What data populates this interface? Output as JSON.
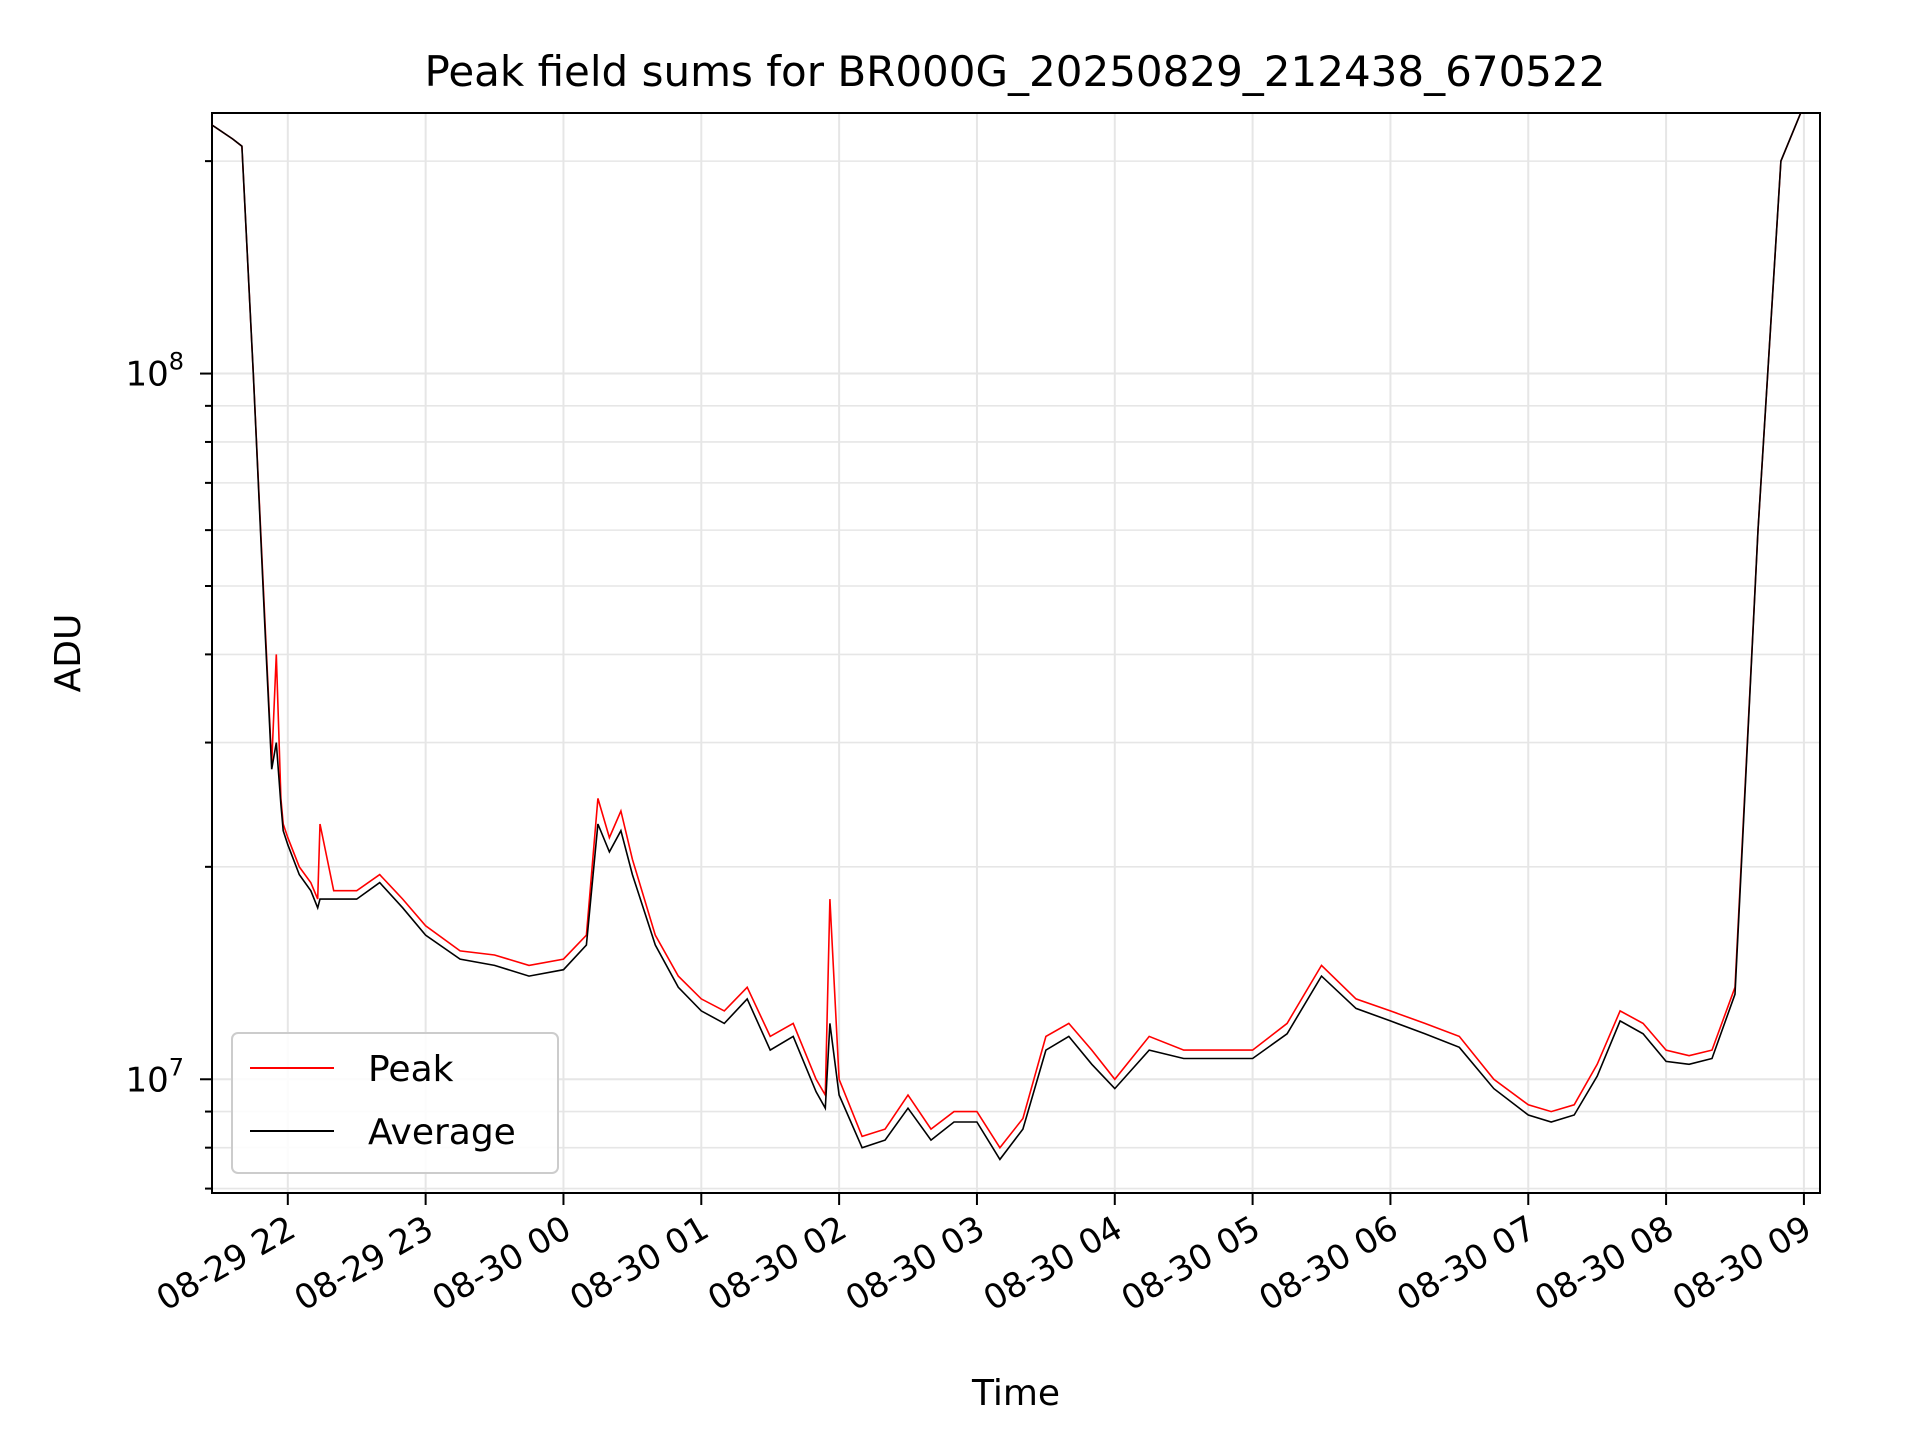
{
  "chart_data": {
    "type": "line",
    "title": "Peak field sums for BR000G_20250829_212438_670522",
    "xlabel": "Time",
    "ylabel": "ADU",
    "y_scale": "log",
    "ylim": [
      6900000,
      234000000
    ],
    "xlim": [
      "2025-08-29 21:27",
      "2025-08-30 09:07"
    ],
    "grid": true,
    "legend_position": "lower-left",
    "x_ticks": [
      {
        "label": "08-29 22",
        "t": "2025-08-29 22:00"
      },
      {
        "label": "08-29 23",
        "t": "2025-08-29 23:00"
      },
      {
        "label": "08-30 00",
        "t": "2025-08-30 00:00"
      },
      {
        "label": "08-30 01",
        "t": "2025-08-30 01:00"
      },
      {
        "label": "08-30 02",
        "t": "2025-08-30 02:00"
      },
      {
        "label": "08-30 03",
        "t": "2025-08-30 03:00"
      },
      {
        "label": "08-30 04",
        "t": "2025-08-30 04:00"
      },
      {
        "label": "08-30 05",
        "t": "2025-08-30 05:00"
      },
      {
        "label": "08-30 06",
        "t": "2025-08-30 06:00"
      },
      {
        "label": "08-30 07",
        "t": "2025-08-30 07:00"
      },
      {
        "label": "08-30 08",
        "t": "2025-08-30 08:00"
      },
      {
        "label": "08-30 09",
        "t": "2025-08-30 09:00"
      }
    ],
    "y_ticks": [
      {
        "base": "10",
        "exp": "7",
        "value": 10000000
      },
      {
        "base": "10",
        "exp": "8",
        "value": 100000000
      }
    ],
    "series": [
      {
        "name": "Peak",
        "color": "#ff0000",
        "x": [
          "2025-08-29 21:27",
          "2025-08-29 21:36",
          "2025-08-29 21:40",
          "2025-08-29 21:45",
          "2025-08-29 21:50",
          "2025-08-29 21:53",
          "2025-08-29 21:55",
          "2025-08-29 21:57",
          "2025-08-29 21:58",
          "2025-08-29 22:00",
          "2025-08-29 22:05",
          "2025-08-29 22:10",
          "2025-08-29 22:13",
          "2025-08-29 22:14",
          "2025-08-29 22:20",
          "2025-08-29 22:30",
          "2025-08-29 22:40",
          "2025-08-29 22:50",
          "2025-08-29 23:00",
          "2025-08-29 23:15",
          "2025-08-29 23:30",
          "2025-08-29 23:45",
          "2025-08-30 00:00",
          "2025-08-30 00:10",
          "2025-08-30 00:15",
          "2025-08-30 00:20",
          "2025-08-30 00:25",
          "2025-08-30 00:30",
          "2025-08-30 00:40",
          "2025-08-30 00:50",
          "2025-08-30 01:00",
          "2025-08-30 01:10",
          "2025-08-30 01:20",
          "2025-08-30 01:30",
          "2025-08-30 01:40",
          "2025-08-30 01:50",
          "2025-08-30 01:54",
          "2025-08-30 01:56",
          "2025-08-30 02:00",
          "2025-08-30 02:10",
          "2025-08-30 02:20",
          "2025-08-30 02:30",
          "2025-08-30 02:40",
          "2025-08-30 02:50",
          "2025-08-30 03:00",
          "2025-08-30 03:10",
          "2025-08-30 03:20",
          "2025-08-30 03:30",
          "2025-08-30 03:40",
          "2025-08-30 03:50",
          "2025-08-30 04:00",
          "2025-08-30 04:15",
          "2025-08-30 04:30",
          "2025-08-30 04:45",
          "2025-08-30 05:00",
          "2025-08-30 05:15",
          "2025-08-30 05:30",
          "2025-08-30 05:45",
          "2025-08-30 06:00",
          "2025-08-30 06:15",
          "2025-08-30 06:30",
          "2025-08-30 06:45",
          "2025-08-30 07:00",
          "2025-08-30 07:10",
          "2025-08-30 07:20",
          "2025-08-30 07:30",
          "2025-08-30 07:40",
          "2025-08-30 07:50",
          "2025-08-30 08:00",
          "2025-08-30 08:10",
          "2025-08-30 08:20",
          "2025-08-30 08:30",
          "2025-08-30 08:40",
          "2025-08-30 08:50",
          "2025-08-30 09:00"
        ],
        "y": [
          225000000,
          215000000,
          210000000,
          100000000,
          45000000,
          28000000,
          40000000,
          25000000,
          23000000,
          22000000,
          20000000,
          19000000,
          18000000,
          23000000,
          18500000,
          18500000,
          19500000,
          18000000,
          16500000,
          15200000,
          15000000,
          14500000,
          14800000,
          16000000,
          25000000,
          22000000,
          24000000,
          20500000,
          16000000,
          14000000,
          13000000,
          12500000,
          13500000,
          11500000,
          12000000,
          10000000,
          9500000,
          18000000,
          10000000,
          8300000,
          8500000,
          9500000,
          8500000,
          9000000,
          9000000,
          8000000,
          8800000,
          11500000,
          12000000,
          11000000,
          10000000,
          11500000,
          11000000,
          11000000,
          11000000,
          12000000,
          14500000,
          13000000,
          12500000,
          12000000,
          11500000,
          10000000,
          9200000,
          9000000,
          9200000,
          10500000,
          12500000,
          12000000,
          11000000,
          10800000,
          11000000,
          13500000,
          60000000,
          200000000,
          240000000
        ]
      },
      {
        "name": "Average",
        "color": "#000000",
        "x": [
          "2025-08-29 21:27",
          "2025-08-29 21:36",
          "2025-08-29 21:40",
          "2025-08-29 21:45",
          "2025-08-29 21:50",
          "2025-08-29 21:53",
          "2025-08-29 21:55",
          "2025-08-29 21:57",
          "2025-08-29 21:58",
          "2025-08-29 22:00",
          "2025-08-29 22:05",
          "2025-08-29 22:10",
          "2025-08-29 22:13",
          "2025-08-29 22:14",
          "2025-08-29 22:20",
          "2025-08-29 22:30",
          "2025-08-29 22:40",
          "2025-08-29 22:50",
          "2025-08-29 23:00",
          "2025-08-29 23:15",
          "2025-08-29 23:30",
          "2025-08-29 23:45",
          "2025-08-30 00:00",
          "2025-08-30 00:10",
          "2025-08-30 00:15",
          "2025-08-30 00:20",
          "2025-08-30 00:25",
          "2025-08-30 00:30",
          "2025-08-30 00:40",
          "2025-08-30 00:50",
          "2025-08-30 01:00",
          "2025-08-30 01:10",
          "2025-08-30 01:20",
          "2025-08-30 01:30",
          "2025-08-30 01:40",
          "2025-08-30 01:50",
          "2025-08-30 01:54",
          "2025-08-30 01:56",
          "2025-08-30 02:00",
          "2025-08-30 02:10",
          "2025-08-30 02:20",
          "2025-08-30 02:30",
          "2025-08-30 02:40",
          "2025-08-30 02:50",
          "2025-08-30 03:00",
          "2025-08-30 03:10",
          "2025-08-30 03:20",
          "2025-08-30 03:30",
          "2025-08-30 03:40",
          "2025-08-30 03:50",
          "2025-08-30 04:00",
          "2025-08-30 04:15",
          "2025-08-30 04:30",
          "2025-08-30 04:45",
          "2025-08-30 05:00",
          "2025-08-30 05:15",
          "2025-08-30 05:30",
          "2025-08-30 05:45",
          "2025-08-30 06:00",
          "2025-08-30 06:15",
          "2025-08-30 06:30",
          "2025-08-30 06:45",
          "2025-08-30 07:00",
          "2025-08-30 07:10",
          "2025-08-30 07:20",
          "2025-08-30 07:30",
          "2025-08-30 07:40",
          "2025-08-30 07:50",
          "2025-08-30 08:00",
          "2025-08-30 08:10",
          "2025-08-30 08:20",
          "2025-08-30 08:30",
          "2025-08-30 08:40",
          "2025-08-30 08:50",
          "2025-08-30 09:00"
        ],
        "y": [
          225000000,
          215000000,
          210000000,
          100000000,
          44000000,
          27500000,
          30000000,
          24500000,
          22500000,
          21500000,
          19500000,
          18500000,
          17500000,
          18000000,
          18000000,
          18000000,
          19000000,
          17500000,
          16000000,
          14800000,
          14500000,
          14000000,
          14300000,
          15500000,
          23000000,
          21000000,
          22500000,
          19500000,
          15500000,
          13500000,
          12500000,
          12000000,
          13000000,
          11000000,
          11500000,
          9600000,
          9100000,
          12000000,
          9500000,
          8000000,
          8200000,
          9100000,
          8200000,
          8700000,
          8700000,
          7700000,
          8500000,
          11000000,
          11500000,
          10500000,
          9700000,
          11000000,
          10700000,
          10700000,
          10700000,
          11600000,
          14000000,
          12600000,
          12100000,
          11600000,
          11100000,
          9700000,
          8900000,
          8700000,
          8900000,
          10100000,
          12100000,
          11600000,
          10600000,
          10500000,
          10700000,
          13200000,
          60000000,
          200000000,
          240000000
        ]
      }
    ]
  }
}
